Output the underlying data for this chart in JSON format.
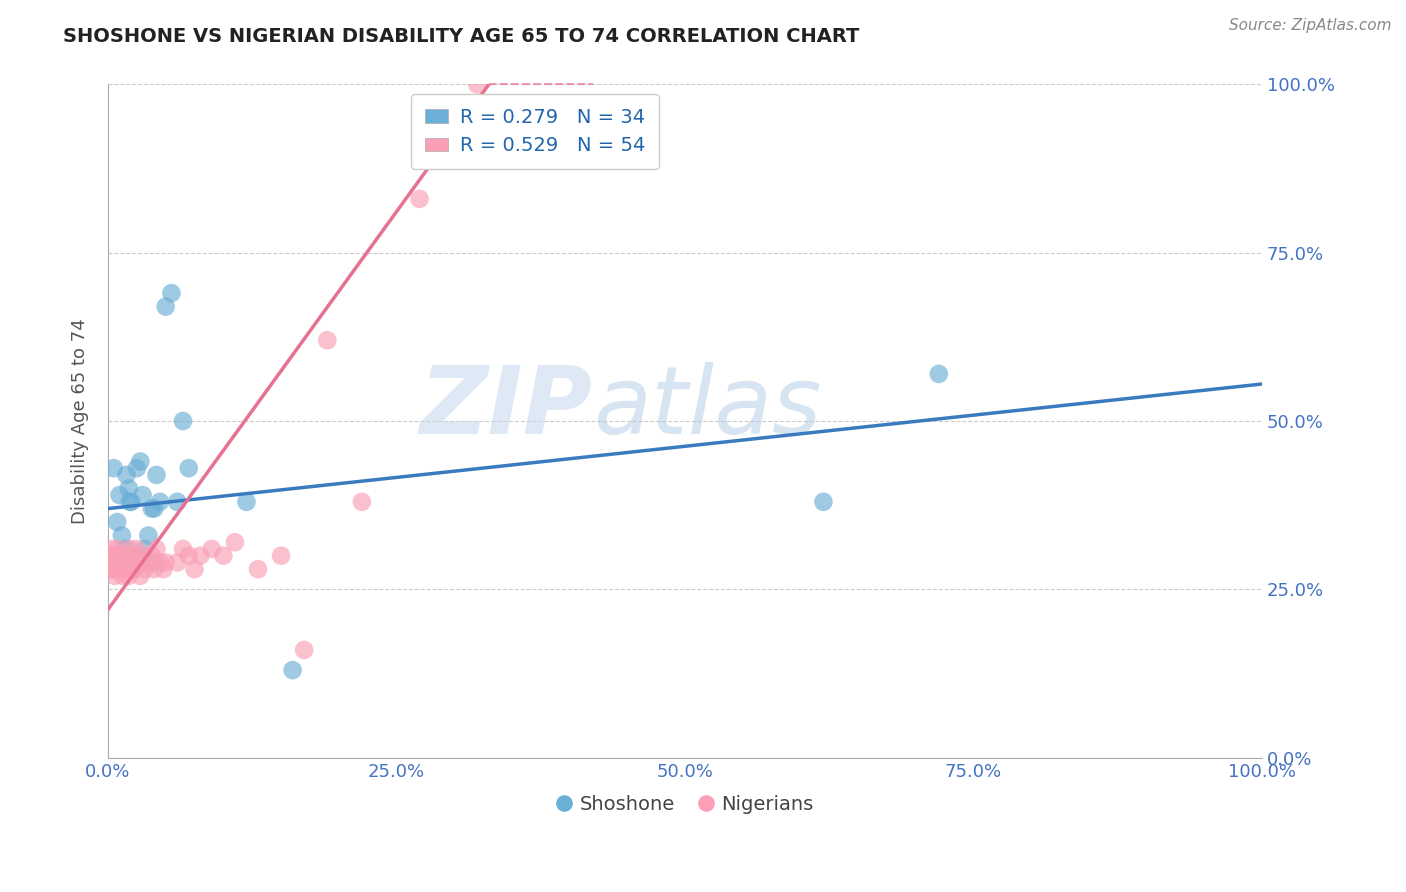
{
  "title": "SHOSHONE VS NIGERIAN DISABILITY AGE 65 TO 74 CORRELATION CHART",
  "source": "Source: ZipAtlas.com",
  "ylabel": "Disability Age 65 to 74",
  "xlim": [
    0,
    1.0
  ],
  "ylim": [
    0,
    1.0
  ],
  "xticks": [
    0,
    0.25,
    0.5,
    0.75,
    1.0
  ],
  "yticks": [
    0,
    0.25,
    0.5,
    0.75,
    1.0
  ],
  "xtick_labels": [
    "0.0%",
    "25.0%",
    "50.0%",
    "75.0%",
    "100.0%"
  ],
  "ytick_labels": [
    "0.0%",
    "25.0%",
    "50.0%",
    "75.0%",
    "100.0%"
  ],
  "shoshone_color": "#6baed6",
  "nigerian_color": "#fa9fb5",
  "shoshone_R": 0.279,
  "shoshone_N": 34,
  "nigerian_R": 0.529,
  "nigerian_N": 54,
  "legend_label_1": "Shoshone",
  "legend_label_2": "Nigerians",
  "shoshone_line_x0": 0.0,
  "shoshone_line_y0": 0.37,
  "shoshone_line_x1": 1.0,
  "shoshone_line_y1": 0.555,
  "nigerian_line_x0": 0.0,
  "nigerian_line_y0": 0.22,
  "nigerian_line_x1": 0.33,
  "nigerian_line_y1": 1.0,
  "shoshone_x": [
    0.005,
    0.008,
    0.01,
    0.012,
    0.013,
    0.015,
    0.015,
    0.016,
    0.018,
    0.019,
    0.02,
    0.021,
    0.022,
    0.025,
    0.025,
    0.028,
    0.03,
    0.03,
    0.032,
    0.035,
    0.038,
    0.04,
    0.04,
    0.042,
    0.045,
    0.05,
    0.055,
    0.06,
    0.065,
    0.07,
    0.12,
    0.16,
    0.62,
    0.72
  ],
  "shoshone_y": [
    0.43,
    0.35,
    0.39,
    0.33,
    0.3,
    0.29,
    0.31,
    0.42,
    0.4,
    0.38,
    0.38,
    0.28,
    0.28,
    0.3,
    0.43,
    0.44,
    0.29,
    0.39,
    0.31,
    0.33,
    0.37,
    0.37,
    0.29,
    0.42,
    0.38,
    0.67,
    0.69,
    0.38,
    0.5,
    0.43,
    0.38,
    0.13,
    0.38,
    0.57
  ],
  "nigerian_x": [
    0.001,
    0.002,
    0.003,
    0.004,
    0.005,
    0.005,
    0.006,
    0.006,
    0.007,
    0.008,
    0.008,
    0.009,
    0.01,
    0.011,
    0.012,
    0.013,
    0.013,
    0.014,
    0.015,
    0.016,
    0.017,
    0.018,
    0.019,
    0.02,
    0.021,
    0.022,
    0.023,
    0.025,
    0.027,
    0.028,
    0.03,
    0.032,
    0.035,
    0.038,
    0.04,
    0.042,
    0.045,
    0.048,
    0.05,
    0.06,
    0.065,
    0.07,
    0.075,
    0.08,
    0.09,
    0.1,
    0.11,
    0.13,
    0.15,
    0.17,
    0.19,
    0.22,
    0.27,
    0.32
  ],
  "nigerian_y": [
    0.3,
    0.29,
    0.31,
    0.28,
    0.3,
    0.28,
    0.29,
    0.27,
    0.3,
    0.28,
    0.29,
    0.31,
    0.28,
    0.3,
    0.29,
    0.28,
    0.27,
    0.3,
    0.29,
    0.28,
    0.29,
    0.27,
    0.31,
    0.3,
    0.28,
    0.29,
    0.28,
    0.31,
    0.29,
    0.27,
    0.3,
    0.28,
    0.29,
    0.3,
    0.28,
    0.31,
    0.29,
    0.28,
    0.29,
    0.29,
    0.31,
    0.3,
    0.28,
    0.3,
    0.31,
    0.3,
    0.32,
    0.28,
    0.3,
    0.16,
    0.62,
    0.38,
    0.83,
    1.0
  ],
  "watermark_line1": "ZIP",
  "watermark_line2": "atlas",
  "background_color": "#ffffff",
  "grid_color": "#cccccc",
  "title_color": "#222222",
  "tick_label_color": "#4472c4"
}
